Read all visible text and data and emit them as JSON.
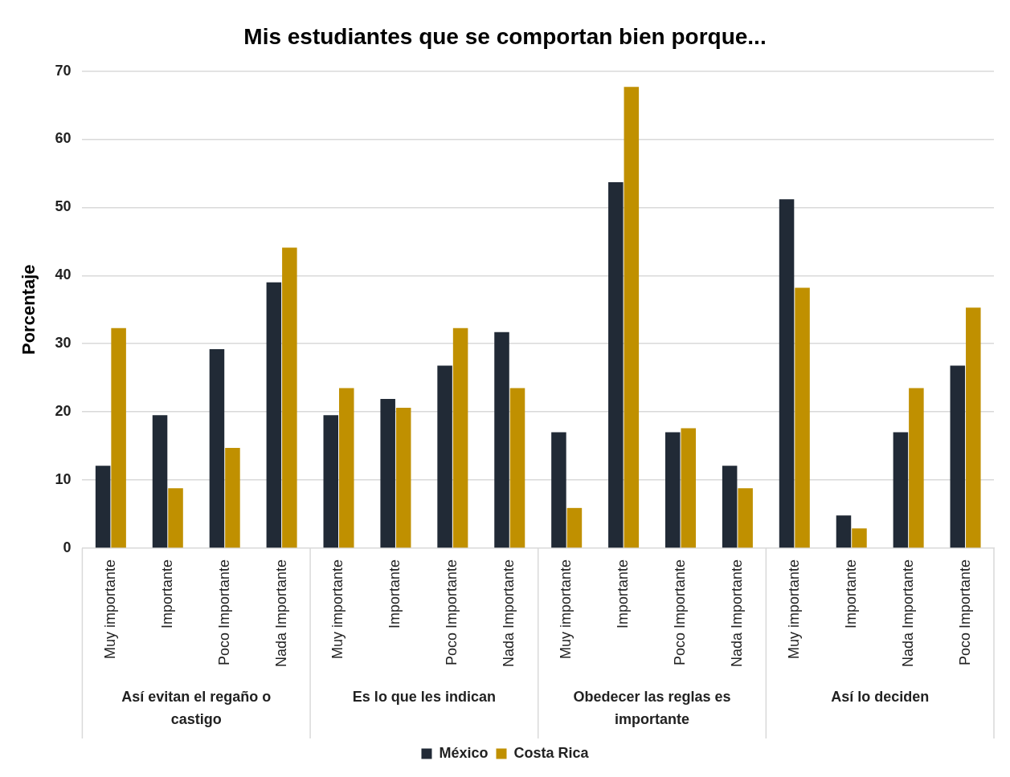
{
  "chart_data": {
    "type": "bar",
    "title": "Mis estudiantes que se comportan bien porque...",
    "ylabel": "Porcentaje",
    "categories": [
      "Muy importante",
      "Importante",
      "Poco Importante",
      "Nada Importante",
      "Muy importante",
      "Importante",
      "Poco Importante",
      "Nada Importante",
      "Muy importante",
      "Importante",
      "Poco Importante",
      "Nada Importante",
      "Muy importante",
      "Importante",
      "Nada Importante",
      "Poco Importante"
    ],
    "annotations": [
      "Así evitan el regaño o castigo",
      "Es lo que les indican",
      "Obedecer las reglas es importante",
      "Así lo deciden"
    ],
    "series": [
      {
        "name": "México",
        "color": "#212a36",
        "values": [
          12.1,
          19.5,
          29.2,
          39.0,
          19.5,
          21.9,
          26.8,
          31.7,
          17.0,
          53.7,
          17.0,
          12.1,
          51.2,
          4.8,
          17.0,
          26.8
        ]
      },
      {
        "name": "Costa Rica",
        "color": "#c09000",
        "values": [
          32.3,
          8.8,
          14.7,
          44.1,
          23.5,
          20.6,
          32.3,
          23.5,
          5.9,
          67.7,
          17.6,
          8.8,
          38.2,
          2.9,
          23.5,
          35.3
        ]
      }
    ],
    "ylim": [
      0,
      70
    ],
    "yticks": [
      0,
      10,
      20,
      30,
      40,
      50,
      60,
      70
    ],
    "grid": "y",
    "legend": "bottom"
  }
}
